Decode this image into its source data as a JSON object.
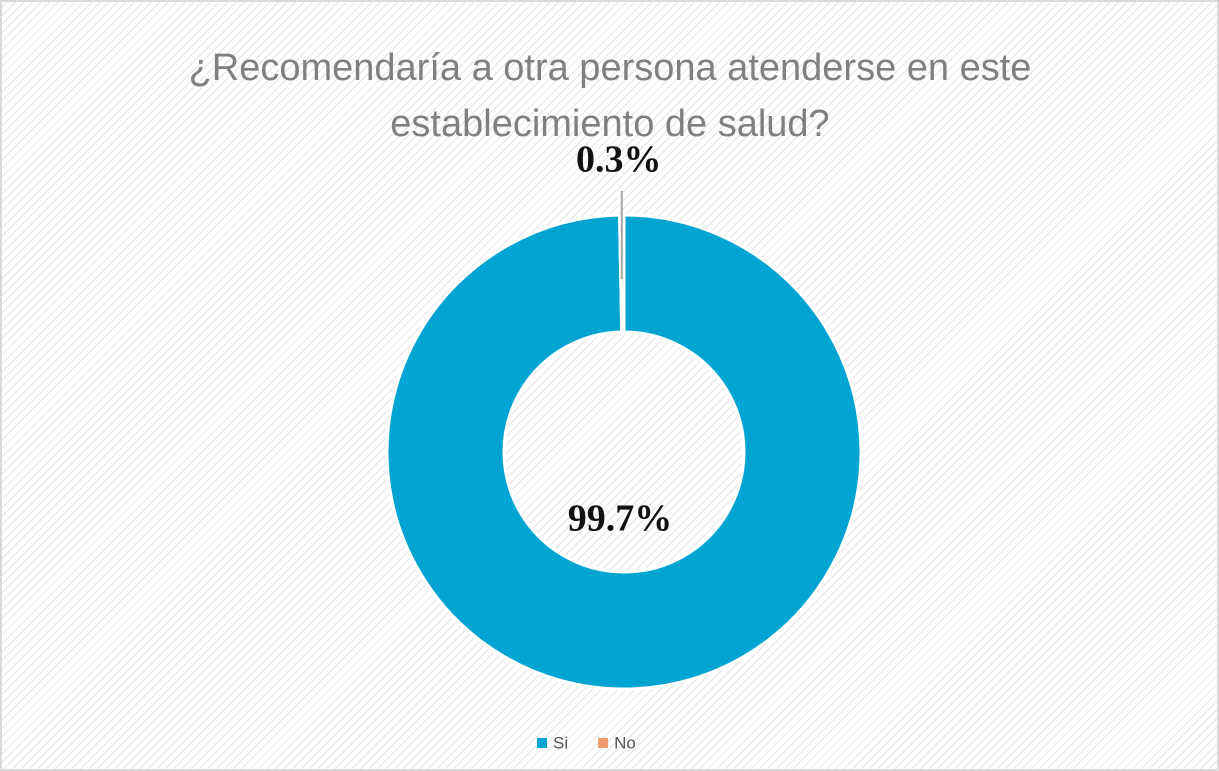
{
  "chart_data": {
    "type": "donut",
    "title": "¿Recomendaría a otra persona atenderse en este establecimiento de salud?",
    "categories": [
      "Si",
      "No"
    ],
    "values": [
      99.7,
      0.3
    ],
    "value_labels": [
      "99.7%",
      "0.3%"
    ],
    "colors": [
      "#02a5d1",
      "#f09a6e"
    ],
    "legend": "bottom"
  }
}
